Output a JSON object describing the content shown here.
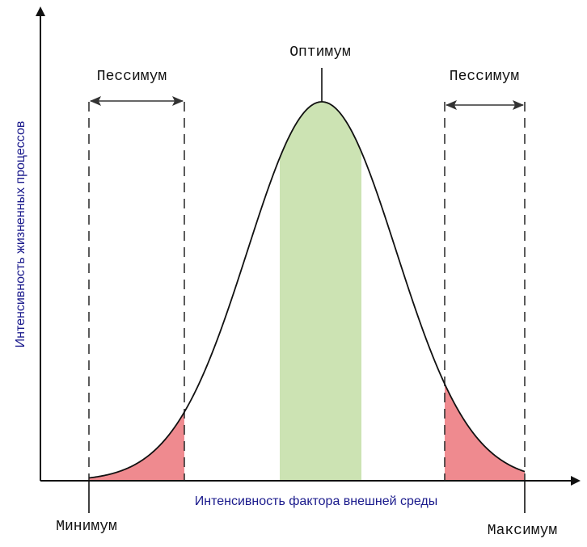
{
  "labels": {
    "optimum": "Оптимум",
    "pessimum_left": "Пессимум",
    "pessimum_right": "Пессимум",
    "minimum": "Минимум",
    "maximum": "Максимум",
    "x_axis": "Интенсивность фактора внешней среды",
    "y_axis": "Интенсивность жизненных процессов"
  },
  "colors": {
    "optimum_fill": "#cce3b3",
    "pessimum_fill": "#ef8a8f",
    "axis_label": "#1a1a8c",
    "line": "#111111",
    "dashed": "#333333"
  }
}
